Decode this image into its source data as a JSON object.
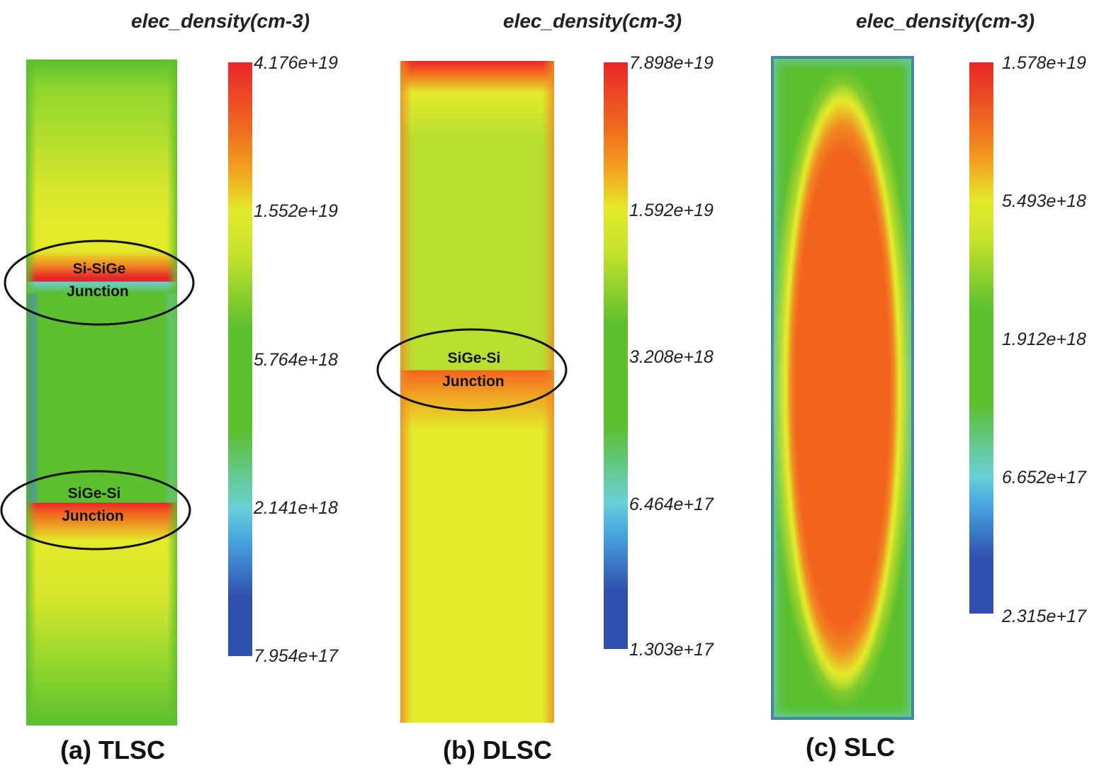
{
  "colors": {
    "red": "#e8262a",
    "orange": "#f2641e",
    "yellow": "#e3ea2a",
    "yellowgreen": "#b8df30",
    "green": "#5bbf2e",
    "cyan": "#6ad0d6",
    "blue": "#3050b0"
  },
  "panels": [
    {
      "caption": "(a) TLSC",
      "colorbar": {
        "title": "elec_density(cm-3)",
        "ticks": [
          "4.176e+19",
          "1.552e+19",
          "5.764e+18",
          "2.141e+18",
          "7.954e+17"
        ]
      },
      "junctions": [
        {
          "line1": "Si-SiGe",
          "line2": "Junction"
        },
        {
          "line1": "SiGe-Si",
          "line2": "Junction"
        }
      ]
    },
    {
      "caption": "(b) DLSC",
      "colorbar": {
        "title": "elec_density(cm-3)",
        "ticks": [
          "7.898e+19",
          "1.592e+19",
          "3.208e+18",
          "6.464e+17",
          "1.303e+17"
        ]
      },
      "junctions": [
        {
          "line1": "SiGe-Si",
          "line2": "Junction"
        }
      ]
    },
    {
      "caption": "(c) SLC",
      "colorbar": {
        "title": "elec_density(cm-3)",
        "ticks": [
          "1.578e+19",
          "5.493e+18",
          "1.912e+18",
          "6.652e+17",
          "2.315e+17"
        ]
      },
      "junctions": []
    }
  ]
}
